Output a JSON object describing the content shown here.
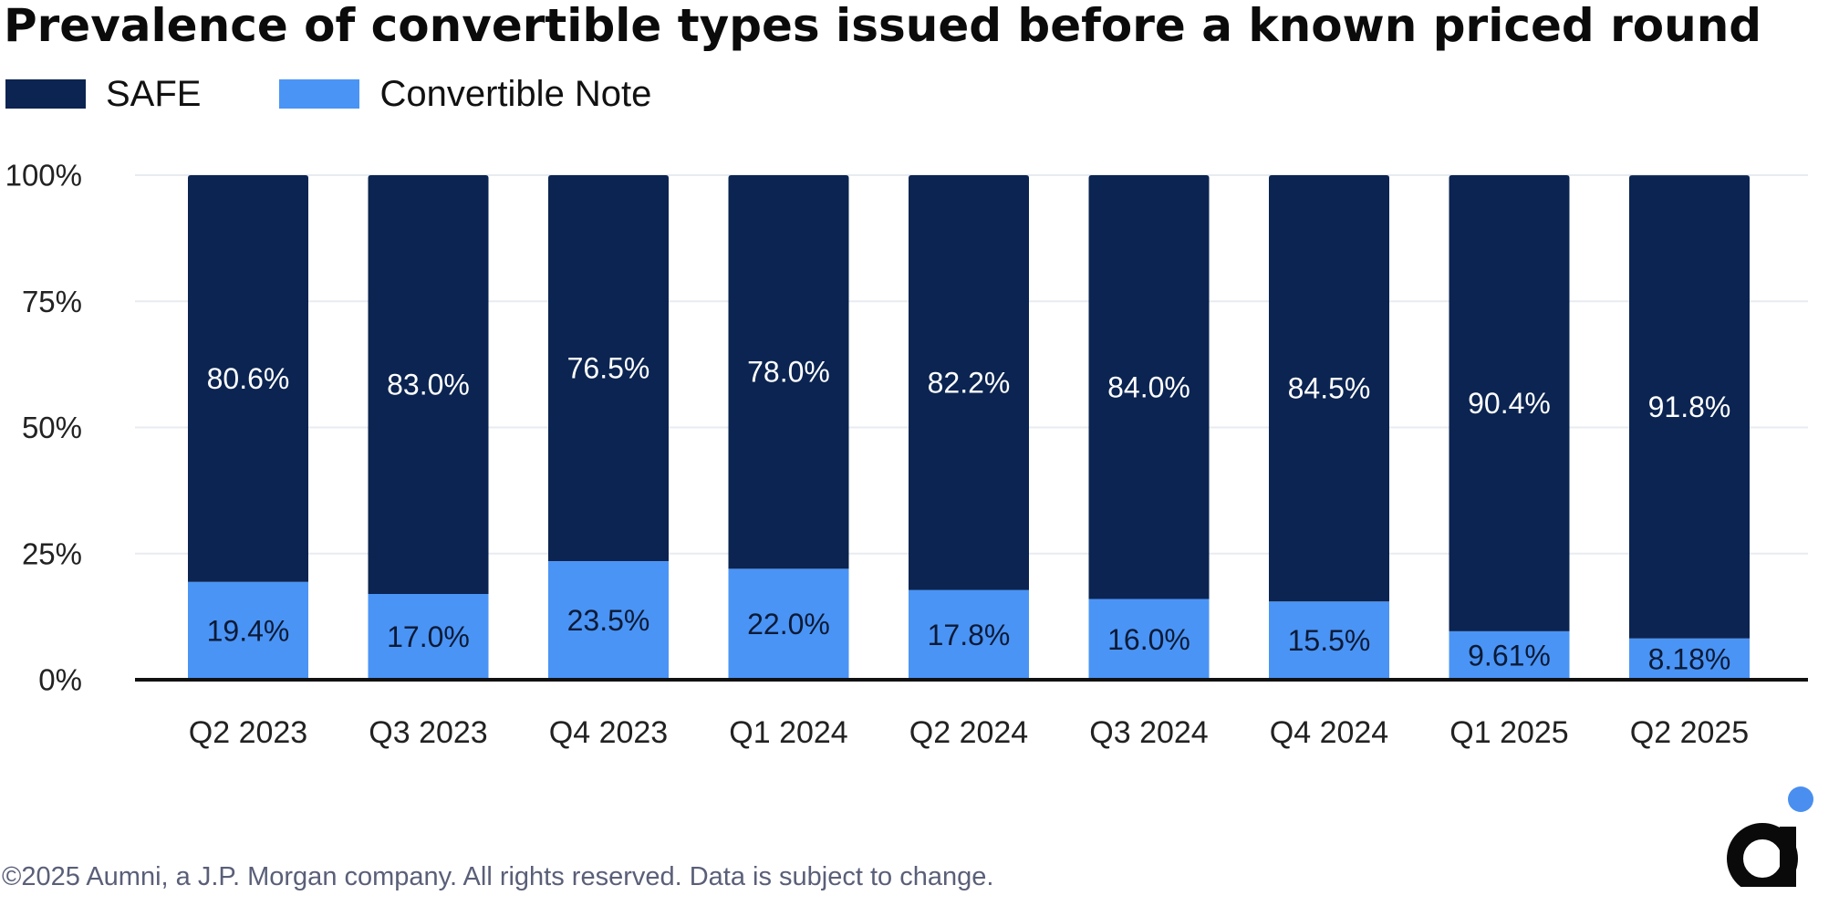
{
  "title": "Prevalence of convertible types issued before a known priced round",
  "footer": "©2025 Aumni, a J.P. Morgan company. All rights reserved. Data is subject to change.",
  "logo": {
    "icon": "aumni-logo-icon",
    "accent_color": "#4a8ff0",
    "mark_color": "#0a0a0a"
  },
  "colors": {
    "safe": "#0b2451",
    "note": "#4a94f5",
    "grid": "#e8ebf0",
    "axis": "#111111"
  },
  "chart_data": {
    "type": "bar",
    "stacked": true,
    "title": "Prevalence of convertible types issued before a known priced round",
    "xlabel": "",
    "ylabel": "",
    "ylim": [
      0,
      100
    ],
    "yticks": [
      0,
      25,
      50,
      75,
      100
    ],
    "ytick_labels": [
      "0%",
      "25%",
      "50%",
      "75%",
      "100%"
    ],
    "grid": true,
    "legend_position": "top-left",
    "categories": [
      "Q2 2023",
      "Q3 2023",
      "Q4 2023",
      "Q1 2024",
      "Q2 2024",
      "Q3 2024",
      "Q4 2024",
      "Q1 2025",
      "Q2 2025"
    ],
    "series": [
      {
        "name": "Convertible Note",
        "color": "#4a94f5",
        "values": [
          19.4,
          17.0,
          23.5,
          22.0,
          17.8,
          16.0,
          15.5,
          9.61,
          8.18
        ],
        "labels": [
          "19.4%",
          "17.0%",
          "23.5%",
          "22.0%",
          "17.8%",
          "16.0%",
          "15.5%",
          "9.61%",
          "8.18%"
        ]
      },
      {
        "name": "SAFE",
        "color": "#0b2451",
        "values": [
          80.6,
          83.0,
          76.5,
          78.0,
          82.2,
          84.0,
          84.5,
          90.4,
          91.8
        ],
        "labels": [
          "80.6%",
          "83.0%",
          "76.5%",
          "78.0%",
          "82.2%",
          "84.0%",
          "84.5%",
          "90.4%",
          "91.8%"
        ]
      }
    ],
    "legend": [
      {
        "name": "SAFE",
        "color": "#0b2451"
      },
      {
        "name": "Convertible Note",
        "color": "#4a94f5"
      }
    ]
  }
}
